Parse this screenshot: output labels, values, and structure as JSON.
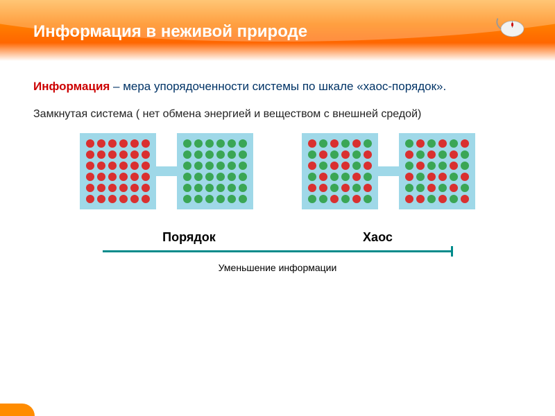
{
  "header": {
    "title": "Информация в неживой природе"
  },
  "definition": {
    "term": "Информация",
    "rest": " – мера упорядоченности системы по шкале «хаос-порядок»."
  },
  "closed_system": "Замкнутая система ( нет обмена энергией и веществом с внешней средой)",
  "colors": {
    "box_bg": "#9fd8e8",
    "red": "#d93030",
    "green": "#3aa655",
    "scale": "#008b8b",
    "header_grad_top": "#ffb347",
    "header_grad_mid": "#ff7f00"
  },
  "boxes": {
    "rows": 6,
    "cols": 6,
    "order_left": "all_red",
    "order_right": "all_green",
    "chaos_left_pattern": [
      [
        "r",
        "g",
        "r",
        "g",
        "r",
        "g"
      ],
      [
        "g",
        "r",
        "g",
        "r",
        "g",
        "r"
      ],
      [
        "r",
        "g",
        "r",
        "r",
        "g",
        "r"
      ],
      [
        "g",
        "r",
        "g",
        "g",
        "r",
        "g"
      ],
      [
        "r",
        "r",
        "g",
        "r",
        "g",
        "r"
      ],
      [
        "g",
        "g",
        "r",
        "g",
        "r",
        "g"
      ]
    ],
    "chaos_right_pattern": [
      [
        "g",
        "r",
        "g",
        "r",
        "g",
        "r"
      ],
      [
        "r",
        "g",
        "r",
        "g",
        "r",
        "g"
      ],
      [
        "g",
        "r",
        "g",
        "g",
        "r",
        "g"
      ],
      [
        "r",
        "g",
        "r",
        "r",
        "g",
        "r"
      ],
      [
        "g",
        "g",
        "r",
        "g",
        "r",
        "g"
      ],
      [
        "r",
        "r",
        "g",
        "r",
        "g",
        "r"
      ]
    ]
  },
  "labels": {
    "left": "Порядок",
    "right": "Хаос"
  },
  "scale_caption": "Уменьшение информации"
}
